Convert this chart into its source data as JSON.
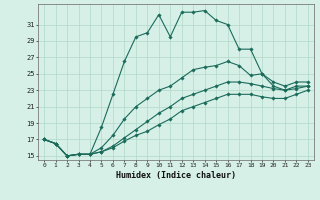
{
  "title": "",
  "xlabel": "Humidex (Indice chaleur)",
  "bg_color": "#d6f0e8",
  "grid_color": "#b0d8c8",
  "line_color": "#1a6b5a",
  "ylim": [
    14.5,
    33.5
  ],
  "xlim": [
    -0.5,
    23.5
  ],
  "yticks": [
    15,
    17,
    19,
    21,
    23,
    25,
    27,
    29,
    31
  ],
  "xticks": [
    0,
    1,
    2,
    3,
    4,
    5,
    6,
    7,
    8,
    9,
    10,
    11,
    12,
    13,
    14,
    15,
    16,
    17,
    18,
    19,
    20,
    21,
    22,
    23
  ],
  "series": [
    [
      17,
      16.5,
      15,
      15.2,
      15.2,
      18.5,
      22.5,
      26.5,
      29.5,
      30.0,
      32.2,
      29.5,
      32.5,
      32.5,
      32.7,
      31.5,
      31.0,
      28.0,
      28.0,
      25.0,
      24.0,
      23.5,
      24.0,
      24.0
    ],
    [
      17,
      16.5,
      15,
      15.2,
      15.2,
      16.0,
      17.5,
      19.5,
      21.0,
      22.0,
      23.0,
      23.5,
      24.5,
      25.5,
      25.8,
      26.0,
      26.5,
      26.0,
      24.8,
      25.0,
      23.5,
      23.0,
      23.5,
      23.5
    ],
    [
      17,
      16.5,
      15,
      15.2,
      15.2,
      15.5,
      16.2,
      17.2,
      18.2,
      19.2,
      20.2,
      21.0,
      22.0,
      22.5,
      23.0,
      23.5,
      24.0,
      24.0,
      23.8,
      23.5,
      23.2,
      23.0,
      23.2,
      23.5
    ],
    [
      17,
      16.5,
      15,
      15.2,
      15.2,
      15.5,
      16.0,
      16.8,
      17.5,
      18.0,
      18.8,
      19.5,
      20.5,
      21.0,
      21.5,
      22.0,
      22.5,
      22.5,
      22.5,
      22.2,
      22.0,
      22.0,
      22.5,
      23.0
    ]
  ]
}
